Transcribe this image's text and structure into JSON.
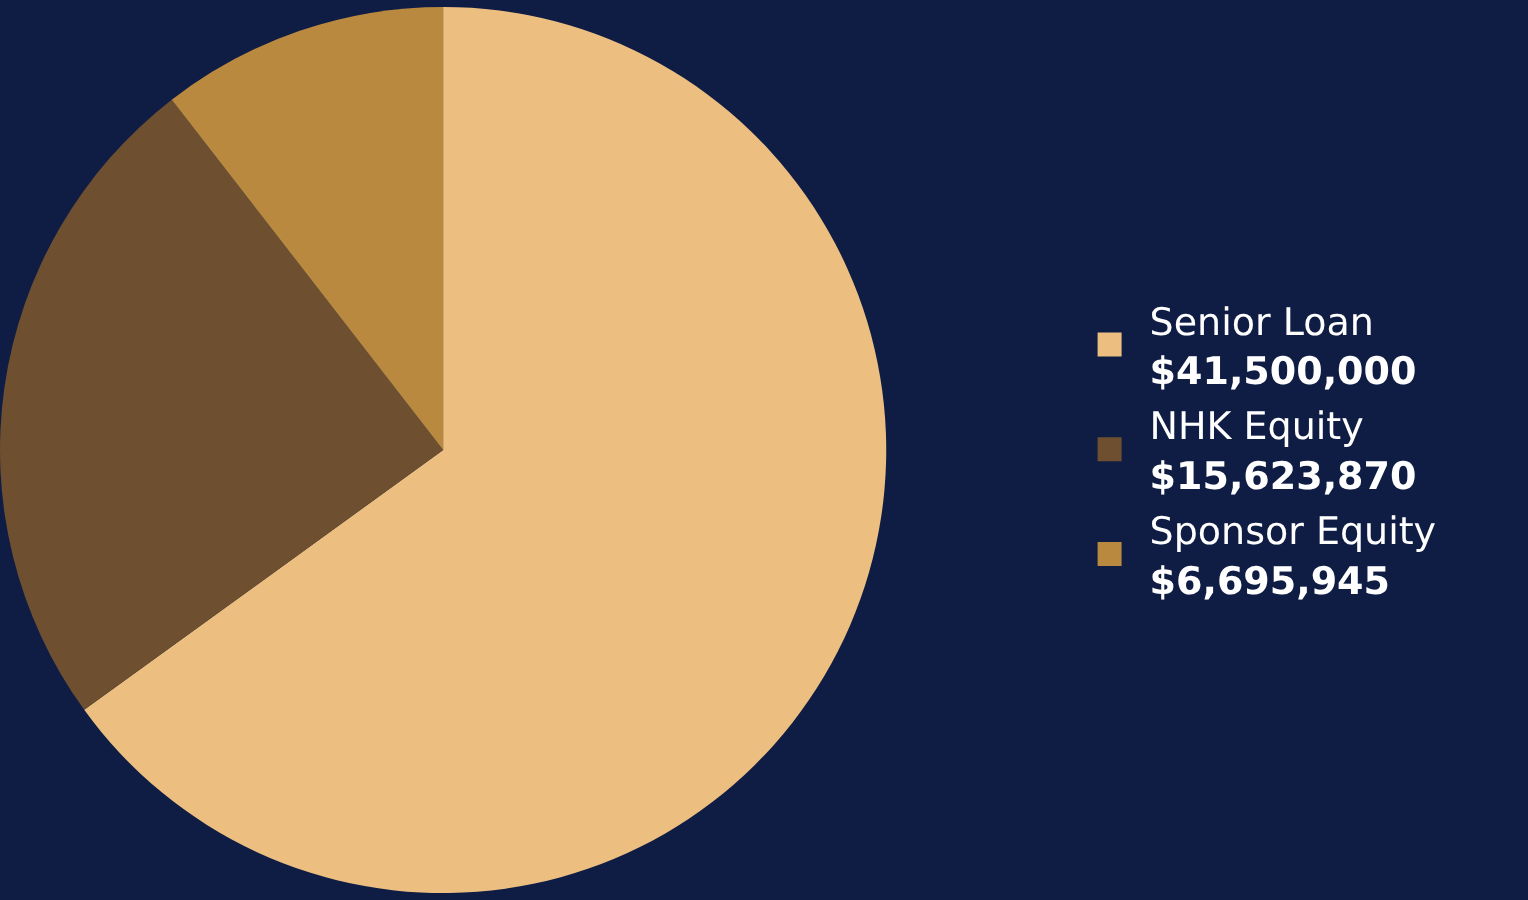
{
  "chart_data": {
    "type": "pie",
    "categories": [
      "Senior Loan",
      "NHK Equity",
      "Sponsor Equity"
    ],
    "values": [
      41500000,
      15623870,
      6695945
    ],
    "colors": [
      "#ecbf80",
      "#6e5030",
      "#b8893f"
    ],
    "value_labels": [
      "$41,500,000",
      "$15,623,870",
      "$6,695,945"
    ],
    "legend": "right"
  }
}
